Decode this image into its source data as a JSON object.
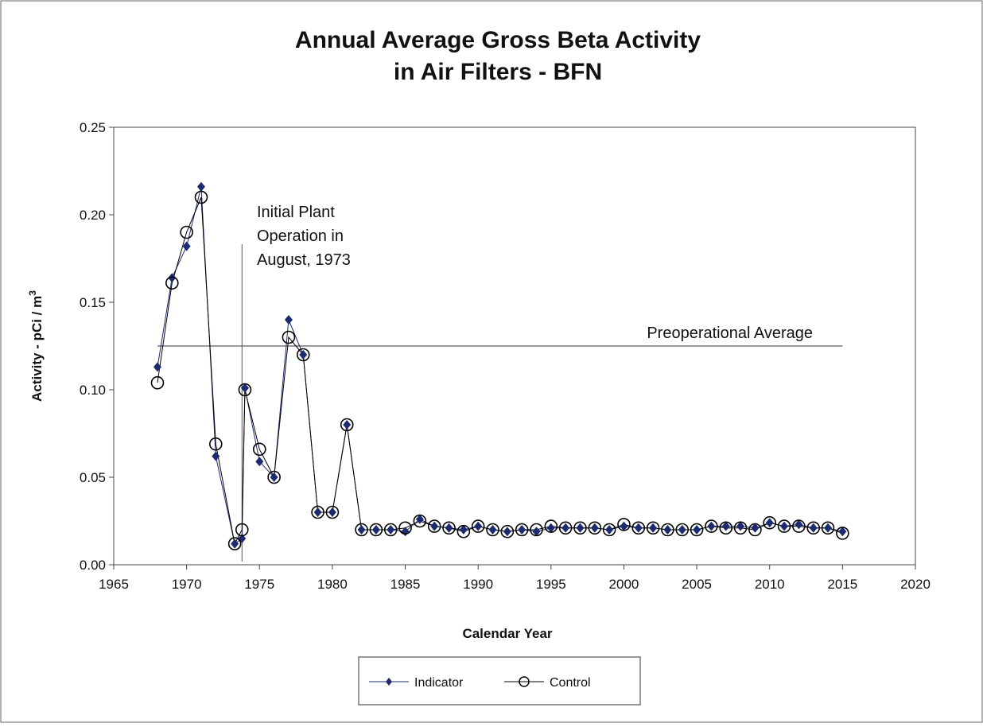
{
  "chart_data": {
    "type": "line",
    "title": [
      "Annual Average Gross Beta Activity",
      "in Air Filters - BFN"
    ],
    "x_label": "Calendar Year",
    "y_label": [
      "Activity  - pCi / m",
      "3"
    ],
    "x": [
      1968,
      1969,
      1970,
      1971,
      1972,
      1973.3,
      1973.8,
      1974,
      1975,
      1976,
      1977,
      1978,
      1979,
      1980,
      1981,
      1982,
      1983,
      1984,
      1985,
      1986,
      1987,
      1988,
      1989,
      1990,
      1991,
      1992,
      1993,
      1994,
      1995,
      1996,
      1997,
      1998,
      1999,
      2000,
      2001,
      2002,
      2003,
      2004,
      2005,
      2006,
      2007,
      2008,
      2009,
      2010,
      2011,
      2012,
      2013,
      2014,
      2015
    ],
    "series": [
      {
        "name": "Indicator",
        "color": "#1c2a70",
        "marker": "diamond",
        "values": [
          0.113,
          0.164,
          0.182,
          0.216,
          0.062,
          0.012,
          0.015,
          0.101,
          0.059,
          0.05,
          0.14,
          0.12,
          0.03,
          0.03,
          0.08,
          0.02,
          0.02,
          0.02,
          0.019,
          0.026,
          0.022,
          0.021,
          0.02,
          0.022,
          0.02,
          0.019,
          0.02,
          0.019,
          0.021,
          0.021,
          0.021,
          0.021,
          0.02,
          0.022,
          0.021,
          0.021,
          0.02,
          0.02,
          0.02,
          0.022,
          0.022,
          0.022,
          0.021,
          0.024,
          0.022,
          0.023,
          0.021,
          0.021,
          0.019
        ]
      },
      {
        "name": "Control",
        "color": "#000000",
        "marker": "circle",
        "values": [
          0.104,
          0.161,
          0.19,
          0.21,
          0.069,
          0.012,
          0.02,
          0.1,
          0.066,
          0.05,
          0.13,
          0.12,
          0.03,
          0.03,
          0.08,
          0.02,
          0.02,
          0.02,
          0.021,
          0.025,
          0.022,
          0.021,
          0.019,
          0.022,
          0.02,
          0.019,
          0.02,
          0.02,
          0.022,
          0.021,
          0.021,
          0.021,
          0.02,
          0.023,
          0.021,
          0.021,
          0.02,
          0.02,
          0.02,
          0.022,
          0.021,
          0.021,
          0.02,
          0.024,
          0.022,
          0.022,
          0.021,
          0.021,
          0.018
        ]
      }
    ],
    "xlim": [
      1965,
      2020
    ],
    "xticks": [
      1965,
      1970,
      1975,
      1980,
      1985,
      1990,
      1995,
      2000,
      2005,
      2010,
      2015,
      2020
    ],
    "ylim": [
      0,
      0.25
    ],
    "yticks": [
      {
        "value": 0,
        "label": "0.00"
      },
      {
        "value": 0.05,
        "label": "0.05"
      },
      {
        "value": 0.1,
        "label": "0.10"
      },
      {
        "value": 0.15,
        "label": "0.15"
      },
      {
        "value": 0.2,
        "label": "0.20"
      },
      {
        "value": 0.25,
        "label": "0.25"
      }
    ],
    "reference_line": {
      "value": 0.125,
      "label": "Preoperational Average"
    },
    "event_line": {
      "x": 1973.8,
      "label": [
        "Initial Plant",
        "Operation in",
        "August, 1973"
      ]
    },
    "legend": "bottom"
  }
}
